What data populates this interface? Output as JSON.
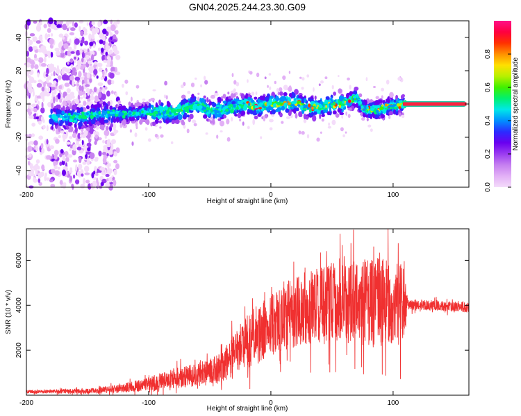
{
  "title": "GN04.2025.244.23.30.G09",
  "chart_data": [
    {
      "type": "heatmap",
      "name": "spectrogram",
      "xlabel": "Height of straight line (km)",
      "ylabel": "Frequency (Hz)",
      "xlim": [
        -200,
        162
      ],
      "ylim": [
        -50,
        50
      ],
      "xticks": [
        -200,
        -100,
        0,
        100
      ],
      "xtick_labels": [
        "-200",
        "-100",
        "0",
        "100"
      ],
      "yticks": [
        -40,
        -20,
        0,
        20,
        40
      ],
      "ytick_labels": [
        "-40",
        "-20",
        "0",
        "20",
        "40"
      ],
      "ridge": {
        "x": [
          -180,
          -160,
          -140,
          -120,
          -100,
          -80,
          -70,
          -60,
          -50,
          -40,
          -30,
          -20,
          -10,
          0,
          10,
          20,
          30,
          40,
          50,
          60,
          65,
          70,
          75,
          80,
          90,
          100,
          110
        ],
        "y": [
          -8,
          -8,
          -6,
          -6,
          -5,
          -5,
          -3,
          0,
          -4,
          -3,
          -2,
          0,
          -2,
          0,
          0,
          1,
          -2,
          -2,
          0,
          0,
          2,
          4,
          -2,
          -4,
          -3,
          -1,
          0
        ]
      },
      "carrier": {
        "x_start": 108,
        "x_end": 160,
        "y": 0
      },
      "colorbar": {
        "label": "Normalized spectral amplitude",
        "range": [
          0,
          1
        ],
        "ticks": [
          0.0,
          0.2,
          0.4,
          0.6,
          0.8
        ],
        "tick_labels": [
          "0.0",
          "0.2",
          "0.4",
          "0.6",
          "0.8"
        ],
        "colors": [
          "#f4dcfa",
          "#e2b0f6",
          "#c680f0",
          "#9b3cf0",
          "#6a00f0",
          "#2b2bff",
          "#0090ff",
          "#00e8e8",
          "#00f070",
          "#40f000",
          "#b8f000",
          "#ffe000",
          "#ff9000",
          "#ff3000",
          "#ff0040",
          "#ff1088"
        ]
      }
    },
    {
      "type": "line",
      "name": "snr",
      "xlabel": "Height of straight line (km)",
      "ylabel": "SNR (10 * v/v)",
      "xlim": [
        -200,
        162
      ],
      "ylim": [
        0,
        7400
      ],
      "xticks": [
        -200,
        -100,
        0,
        100
      ],
      "xtick_labels": [
        "-200",
        "-100",
        "0",
        "100"
      ],
      "yticks": [
        2000,
        4000,
        6000
      ],
      "ytick_labels": [
        "2000",
        "4000",
        "6000"
      ],
      "color": "#f03030",
      "envelope": {
        "x": [
          -200,
          -150,
          -125,
          -100,
          -80,
          -60,
          -40,
          -30,
          -20,
          -10,
          0,
          10,
          20,
          30,
          40,
          50,
          60,
          70,
          80,
          90,
          100,
          108,
          112,
          130,
          162
        ],
        "y": [
          150,
          180,
          280,
          500,
          750,
          900,
          1200,
          1800,
          2400,
          2700,
          3200,
          3500,
          3700,
          3900,
          4000,
          4100,
          4100,
          4100,
          4100,
          4100,
          4100,
          4100,
          4000,
          4000,
          3900
        ],
        "spread": [
          100,
          150,
          250,
          400,
          600,
          700,
          900,
          1300,
          1600,
          1800,
          2000,
          2000,
          2100,
          2200,
          2300,
          2400,
          2400,
          2500,
          2600,
          2700,
          2600,
          2500,
          300,
          300,
          300
        ]
      }
    }
  ]
}
